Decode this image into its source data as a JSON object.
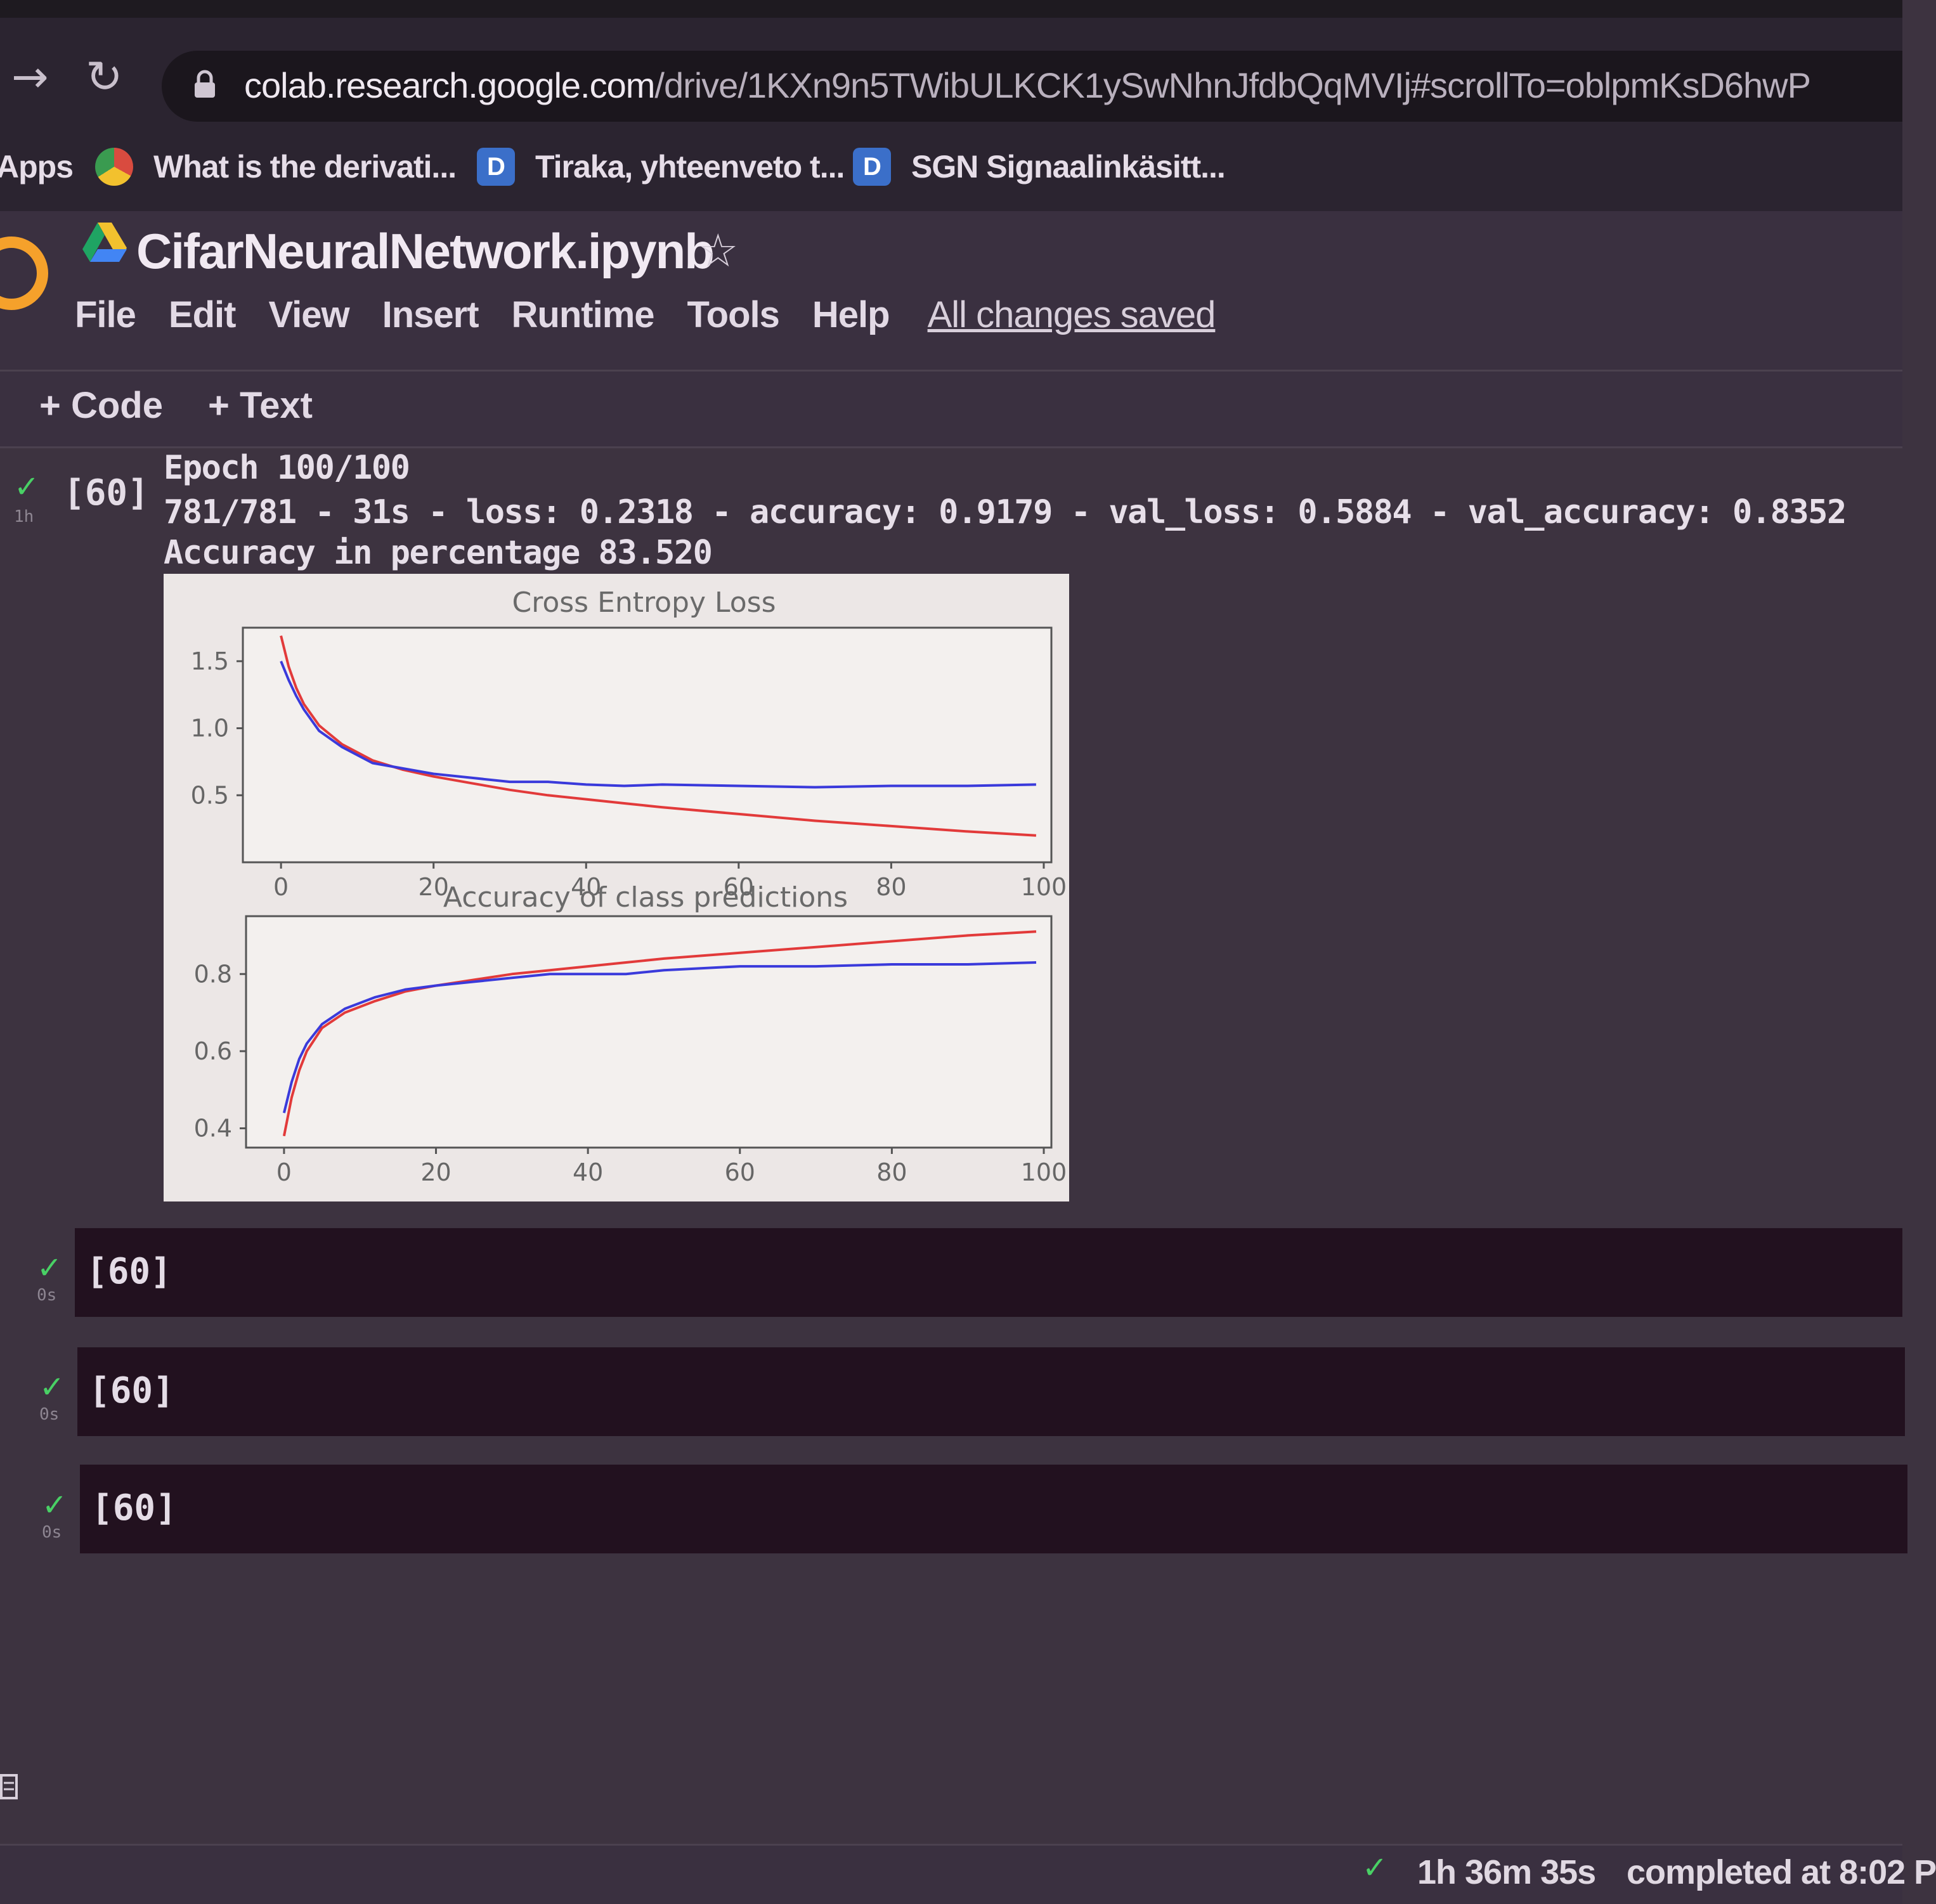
{
  "browser": {
    "url_host": "colab.research.google.com",
    "url_path": "/drive/1KXn9n5TWibULKCK1ySwNhnJfdbQqMVIj#scrollTo=oblpmKsD6hwP",
    "bookmarks": [
      {
        "label": "Apps",
        "icon": "apps-grid-icon"
      },
      {
        "label": "What is the derivati...",
        "icon": "chrome-icon"
      },
      {
        "label": "Tiraka, yhteenveto t...",
        "icon": "doc-d-icon"
      },
      {
        "label": "SGN Signaalinkäsitt...",
        "icon": "doc-d-icon"
      }
    ],
    "bookmark_icon_letter": "D"
  },
  "notebook": {
    "title": "CifarNeuralNetwork.ipynb",
    "menu": [
      "File",
      "Edit",
      "View",
      "Insert",
      "Runtime",
      "Tools",
      "Help"
    ],
    "save_status": "All changes saved",
    "toolbar": {
      "add_code": "+ Code",
      "add_text": "+ Text"
    }
  },
  "output_cell": {
    "exec_count": "[60]",
    "duration": "1h",
    "lines": [
      "Epoch 100/100",
      "781/781 - 31s - loss: 0.2318 - accuracy: 0.9179 - val_loss: 0.5884 - val_accuracy: 0.8352",
      "Accuracy in percentage 83.520"
    ]
  },
  "chart_data": [
    {
      "type": "line",
      "title": "Cross Entropy Loss",
      "x_ticks": [
        0,
        20,
        40,
        60,
        80,
        100
      ],
      "y_ticks": [
        0.5,
        1.0,
        1.5
      ],
      "y_tick_labels": [
        "0.5",
        "1.0",
        "1.5"
      ],
      "ylim": [
        0.0,
        1.75
      ],
      "xlim": [
        -5,
        101
      ],
      "series": [
        {
          "color": "#e23a3a",
          "x": [
            0,
            1,
            2,
            3,
            5,
            8,
            12,
            16,
            20,
            25,
            30,
            35,
            40,
            45,
            50,
            60,
            70,
            80,
            90,
            99
          ],
          "values": [
            1.69,
            1.46,
            1.3,
            1.18,
            1.02,
            0.88,
            0.76,
            0.69,
            0.64,
            0.59,
            0.54,
            0.5,
            0.47,
            0.44,
            0.41,
            0.36,
            0.31,
            0.27,
            0.23,
            0.2
          ]
        },
        {
          "color": "#3a3adb",
          "x": [
            0,
            1,
            2,
            3,
            5,
            8,
            12,
            16,
            20,
            25,
            30,
            35,
            40,
            45,
            50,
            60,
            70,
            80,
            90,
            99
          ],
          "values": [
            1.5,
            1.36,
            1.24,
            1.14,
            0.98,
            0.86,
            0.74,
            0.7,
            0.66,
            0.63,
            0.6,
            0.6,
            0.58,
            0.57,
            0.58,
            0.57,
            0.56,
            0.57,
            0.57,
            0.58
          ]
        }
      ]
    },
    {
      "type": "line",
      "title": "Accuracy of class predictions",
      "x_ticks": [
        0,
        20,
        40,
        60,
        80,
        100
      ],
      "y_ticks": [
        0.4,
        0.6,
        0.8
      ],
      "y_tick_labels": [
        "0.4",
        "0.6",
        "0.8"
      ],
      "ylim": [
        0.35,
        0.95
      ],
      "xlim": [
        -5,
        101
      ],
      "series": [
        {
          "color": "#e23a3a",
          "x": [
            0,
            1,
            2,
            3,
            5,
            8,
            12,
            16,
            20,
            25,
            30,
            35,
            40,
            45,
            50,
            60,
            70,
            80,
            90,
            99
          ],
          "values": [
            0.38,
            0.48,
            0.55,
            0.6,
            0.66,
            0.7,
            0.73,
            0.755,
            0.77,
            0.785,
            0.8,
            0.81,
            0.82,
            0.83,
            0.84,
            0.855,
            0.87,
            0.885,
            0.9,
            0.91
          ]
        },
        {
          "color": "#3a3adb",
          "x": [
            0,
            1,
            2,
            3,
            5,
            8,
            12,
            16,
            20,
            25,
            30,
            35,
            40,
            45,
            50,
            60,
            70,
            80,
            90,
            99
          ],
          "values": [
            0.44,
            0.52,
            0.58,
            0.62,
            0.67,
            0.71,
            0.74,
            0.76,
            0.77,
            0.78,
            0.79,
            0.8,
            0.8,
            0.8,
            0.81,
            0.82,
            0.82,
            0.825,
            0.825,
            0.83
          ]
        }
      ]
    }
  ],
  "empty_cells": [
    {
      "exec_count": "[60]",
      "duration": "0s"
    },
    {
      "exec_count": "[60]",
      "duration": "0s"
    },
    {
      "exec_count": "[60]",
      "duration": "0s"
    }
  ],
  "status": {
    "elapsed": "1h 36m 35s",
    "completed": "completed at 8:02 P"
  },
  "colors": {
    "check": "#49d065",
    "cell_bg": "#22111f",
    "page_bg": "#3d3340"
  }
}
